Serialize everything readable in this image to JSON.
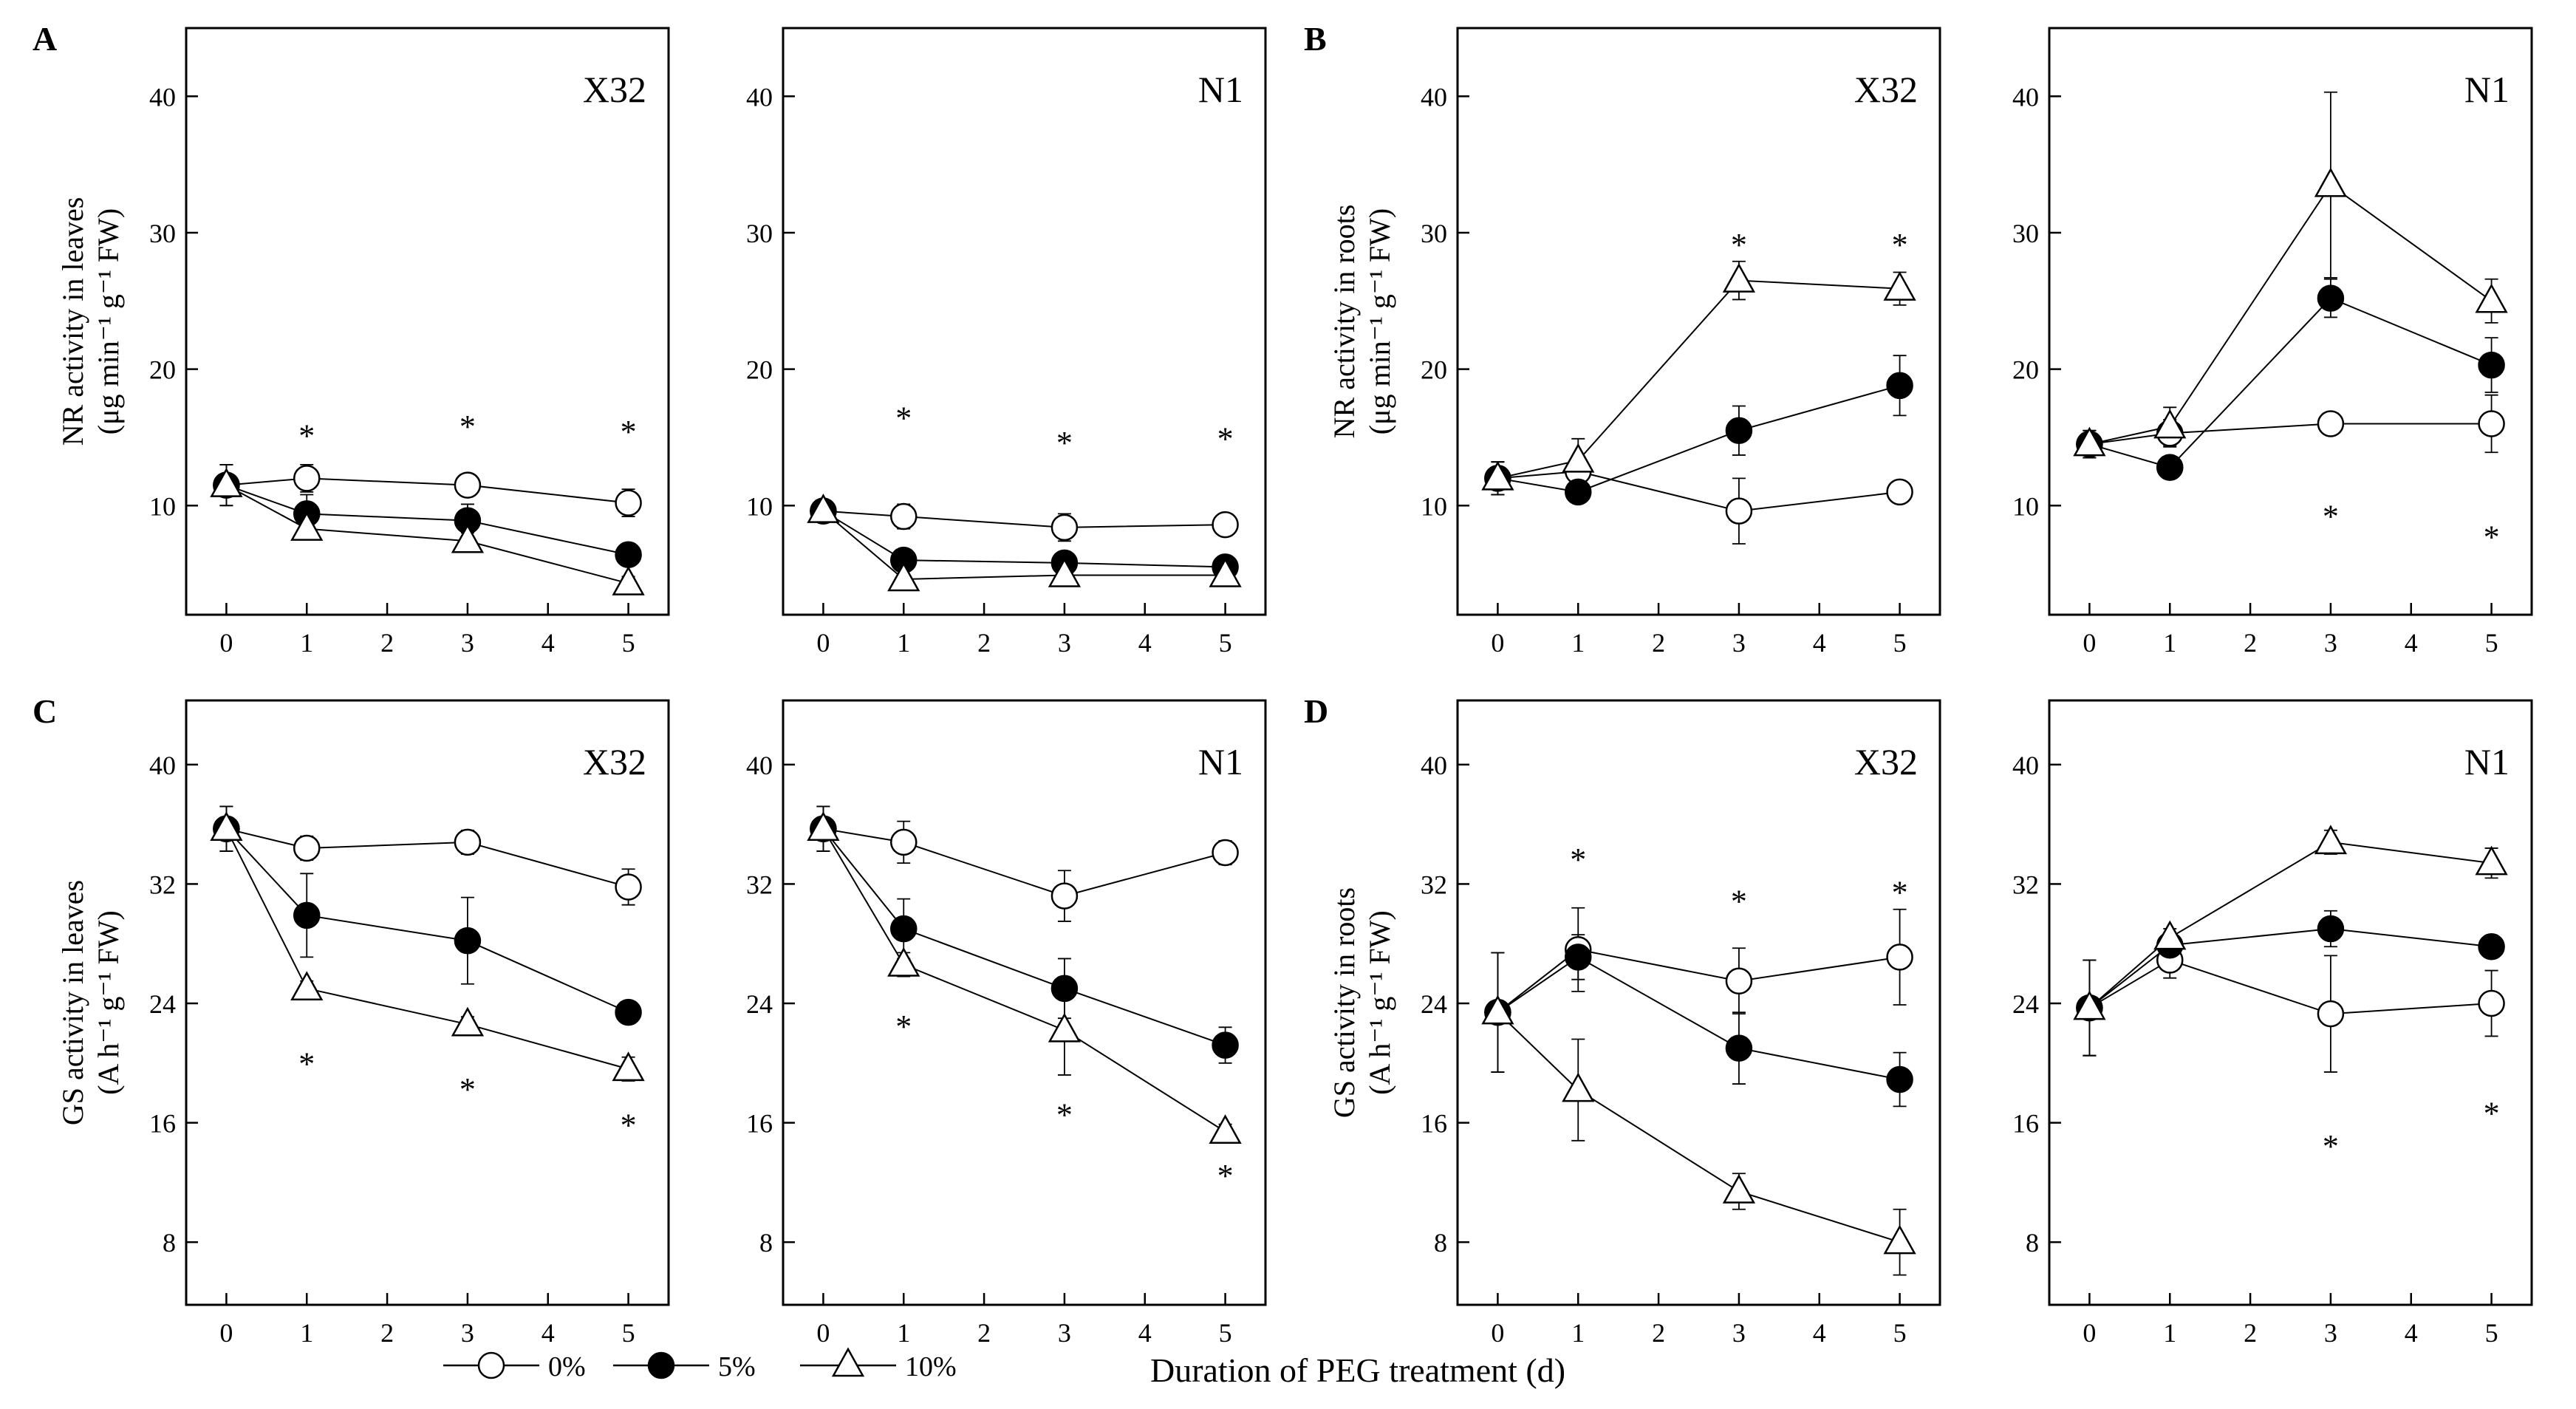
{
  "legend": [
    {
      "label": "0%",
      "marker": "circle-open"
    },
    {
      "label": "5%",
      "marker": "circle-filled"
    },
    {
      "label": "10%",
      "marker": "triangle-open"
    }
  ],
  "x_axis_title": "Duration of PEG treatment (d)",
  "chart_data": [
    {
      "type": "line",
      "panel": "A",
      "title": "X32",
      "ylabel_line1": "NR activity in leaves",
      "ylabel_line2": "(μg min⁻¹ g⁻¹ FW)",
      "xlim": [
        -0.5,
        5.5
      ],
      "ylim": [
        2,
        45
      ],
      "xticks": [
        0,
        1,
        2,
        3,
        4,
        5
      ],
      "yticks": [
        10,
        20,
        30,
        40
      ],
      "x": [
        0,
        1,
        3,
        5
      ],
      "series": [
        {
          "name": "0%",
          "values": [
            11.5,
            12.0,
            11.5,
            10.2
          ],
          "errors": [
            1.5,
            1.0,
            0.6,
            1.0
          ]
        },
        {
          "name": "5%",
          "values": [
            11.5,
            9.4,
            8.9,
            6.4
          ],
          "errors": [
            1.5,
            1.4,
            1.2,
            0.6
          ]
        },
        {
          "name": "10%",
          "values": [
            11.5,
            8.3,
            7.4,
            4.3
          ],
          "errors": [
            1.5,
            0.8,
            0.6,
            0.5
          ]
        }
      ],
      "stars": [
        {
          "x": 1,
          "y": 15.5
        },
        {
          "x": 3,
          "y": 16.2
        },
        {
          "x": 5,
          "y": 15.8
        }
      ]
    },
    {
      "type": "line",
      "panel": "",
      "title": "N1",
      "xlim": [
        -0.5,
        5.5
      ],
      "ylim": [
        2,
        45
      ],
      "xticks": [
        0,
        1,
        2,
        3,
        4,
        5
      ],
      "yticks": [
        10,
        20,
        30,
        40
      ],
      "x": [
        0,
        1,
        3,
        5
      ],
      "series": [
        {
          "name": "0%",
          "values": [
            9.6,
            9.2,
            8.4,
            8.6
          ],
          "errors": [
            0.8,
            0.9,
            1.0,
            0.5
          ]
        },
        {
          "name": "5%",
          "values": [
            9.6,
            6.0,
            5.8,
            5.5
          ],
          "errors": [
            0.8,
            0.6,
            0.5,
            0.5
          ]
        },
        {
          "name": "10%",
          "values": [
            9.6,
            4.6,
            4.9,
            4.9
          ],
          "errors": [
            0.8,
            0.8,
            0.7,
            0.4
          ]
        }
      ],
      "stars": [
        {
          "x": 1,
          "y": 16.8
        },
        {
          "x": 3,
          "y": 15.0
        },
        {
          "x": 5,
          "y": 15.3
        }
      ]
    },
    {
      "type": "line",
      "panel": "B",
      "title": "X32",
      "ylabel_line1": "NR activity in roots",
      "ylabel_line2": "(μg min⁻¹ g⁻¹ FW)",
      "xlim": [
        -0.5,
        5.5
      ],
      "ylim": [
        2,
        45
      ],
      "xticks": [
        0,
        1,
        2,
        3,
        4,
        5
      ],
      "yticks": [
        10,
        20,
        30,
        40
      ],
      "x": [
        0,
        1,
        3,
        5
      ],
      "series": [
        {
          "name": "0%",
          "values": [
            12.0,
            12.5,
            9.6,
            11.0
          ],
          "errors": [
            1.2,
            0.8,
            2.4,
            0.8
          ]
        },
        {
          "name": "5%",
          "values": [
            12.0,
            11.0,
            15.5,
            18.8
          ],
          "errors": [
            1.2,
            0.7,
            1.8,
            2.2
          ]
        },
        {
          "name": "10%",
          "values": [
            12.0,
            13.3,
            26.5,
            25.9
          ],
          "errors": [
            1.2,
            1.6,
            1.4,
            1.2
          ]
        }
      ],
      "stars": [
        {
          "x": 3,
          "y": 29.5
        },
        {
          "x": 5,
          "y": 29.5
        }
      ]
    },
    {
      "type": "line",
      "panel": "",
      "title": "N1",
      "xlim": [
        -0.5,
        5.5
      ],
      "ylim": [
        2,
        45
      ],
      "xticks": [
        0,
        1,
        2,
        3,
        4,
        5
      ],
      "yticks": [
        10,
        20,
        30,
        40
      ],
      "x": [
        0,
        1,
        3,
        5
      ],
      "series": [
        {
          "name": "0%",
          "values": [
            14.5,
            15.3,
            16.0,
            16.0
          ],
          "errors": [
            1.0,
            1.0,
            0.4,
            2.1
          ]
        },
        {
          "name": "5%",
          "values": [
            14.5,
            12.8,
            25.2,
            20.3
          ],
          "errors": [
            1.0,
            0.5,
            1.4,
            2.0
          ]
        },
        {
          "name": "10%",
          "values": [
            14.5,
            15.8,
            33.5,
            25.0
          ],
          "errors": [
            1.0,
            1.4,
            6.8,
            1.6
          ]
        }
      ],
      "stars": [
        {
          "x": 3,
          "y": 9.6
        },
        {
          "x": 5,
          "y": 8.1
        }
      ]
    },
    {
      "type": "line",
      "panel": "C",
      "title": "X32",
      "ylabel_line1": "GS activity in leaves",
      "ylabel_line2": "(A h⁻¹ g⁻¹ FW)",
      "xlim": [
        -0.5,
        5.5
      ],
      "ylim": [
        3.8,
        44.3
      ],
      "xticks": [
        0,
        1,
        2,
        3,
        4,
        5
      ],
      "yticks": [
        8,
        16,
        24,
        32,
        40
      ],
      "x": [
        0,
        1,
        3,
        5
      ],
      "series": [
        {
          "name": "0%",
          "values": [
            35.7,
            34.4,
            34.8,
            31.8
          ],
          "errors": [
            1.5,
            0.8,
            0.8,
            1.2
          ]
        },
        {
          "name": "5%",
          "values": [
            35.7,
            29.9,
            28.2,
            23.4
          ],
          "errors": [
            1.5,
            2.8,
            2.9,
            0.4
          ]
        },
        {
          "name": "10%",
          "values": [
            35.7,
            25.0,
            22.6,
            19.6
          ],
          "errors": [
            1.5,
            0.5,
            0.5,
            0.8
          ]
        }
      ],
      "stars": [
        {
          "x": 1,
          "y": 20.3
        },
        {
          "x": 3,
          "y": 18.6
        },
        {
          "x": 5,
          "y": 16.2
        }
      ]
    },
    {
      "type": "line",
      "panel": "",
      "title": "N1",
      "xlim": [
        -0.5,
        5.5
      ],
      "ylim": [
        3.8,
        44.3
      ],
      "xticks": [
        0,
        1,
        2,
        3,
        4,
        5
      ],
      "yticks": [
        8,
        16,
        24,
        32,
        40
      ],
      "x": [
        0,
        1,
        3,
        5
      ],
      "series": [
        {
          "name": "0%",
          "values": [
            35.7,
            34.8,
            31.2,
            34.1
          ],
          "errors": [
            1.5,
            1.4,
            1.7,
            0.8
          ]
        },
        {
          "name": "5%",
          "values": [
            35.7,
            29.0,
            25.0,
            21.2
          ],
          "errors": [
            1.5,
            2.0,
            2.0,
            1.2
          ]
        },
        {
          "name": "10%",
          "values": [
            35.7,
            26.6,
            22.2,
            15.4
          ],
          "errors": [
            1.5,
            0.8,
            3.0,
            0.5
          ]
        }
      ],
      "stars": [
        {
          "x": 1,
          "y": 22.8
        },
        {
          "x": 3,
          "y": 16.9
        },
        {
          "x": 5,
          "y": 12.8
        }
      ]
    },
    {
      "type": "line",
      "panel": "D",
      "title": "X32",
      "ylabel_line1": "GS activity in roots",
      "ylabel_line2": "(A h⁻¹ g⁻¹ FW)",
      "xlim": [
        -0.5,
        5.5
      ],
      "ylim": [
        3.8,
        44.3
      ],
      "xticks": [
        0,
        1,
        2,
        3,
        4,
        5
      ],
      "yticks": [
        8,
        16,
        24,
        32,
        40
      ],
      "x": [
        0,
        1,
        3,
        5
      ],
      "series": [
        {
          "name": "0%",
          "values": [
            23.4,
            27.6,
            25.5,
            27.1
          ],
          "errors": [
            4.0,
            2.8,
            2.2,
            3.2
          ]
        },
        {
          "name": "5%",
          "values": [
            23.4,
            27.1,
            21.0,
            18.9
          ],
          "errors": [
            4.0,
            1.5,
            2.4,
            1.8
          ]
        },
        {
          "name": "10%",
          "values": [
            23.4,
            18.2,
            11.4,
            8.0
          ],
          "errors": [
            4.0,
            3.4,
            1.2,
            2.2
          ]
        }
      ],
      "stars": [
        {
          "x": 1,
          "y": 34.0
        },
        {
          "x": 3,
          "y": 31.2
        },
        {
          "x": 5,
          "y": 31.8
        }
      ]
    },
    {
      "type": "line",
      "panel": "",
      "title": "N1",
      "xlim": [
        -0.5,
        5.5
      ],
      "ylim": [
        3.8,
        44.3
      ],
      "xticks": [
        0,
        1,
        2,
        3,
        4,
        5
      ],
      "yticks": [
        8,
        16,
        24,
        32,
        40
      ],
      "x": [
        0,
        1,
        3,
        5
      ],
      "series": [
        {
          "name": "0%",
          "values": [
            23.7,
            26.9,
            23.3,
            24.0
          ],
          "errors": [
            3.2,
            1.2,
            3.9,
            2.2
          ]
        },
        {
          "name": "5%",
          "values": [
            23.7,
            27.9,
            29.0,
            27.8
          ],
          "errors": [
            3.2,
            0.6,
            1.2,
            0.5
          ]
        },
        {
          "name": "10%",
          "values": [
            23.7,
            28.4,
            34.8,
            33.4
          ],
          "errors": [
            3.2,
            0.6,
            0.8,
            1.0
          ]
        }
      ],
      "stars": [
        {
          "x": 3,
          "y": 14.8
        },
        {
          "x": 5,
          "y": 17.0
        }
      ]
    }
  ]
}
